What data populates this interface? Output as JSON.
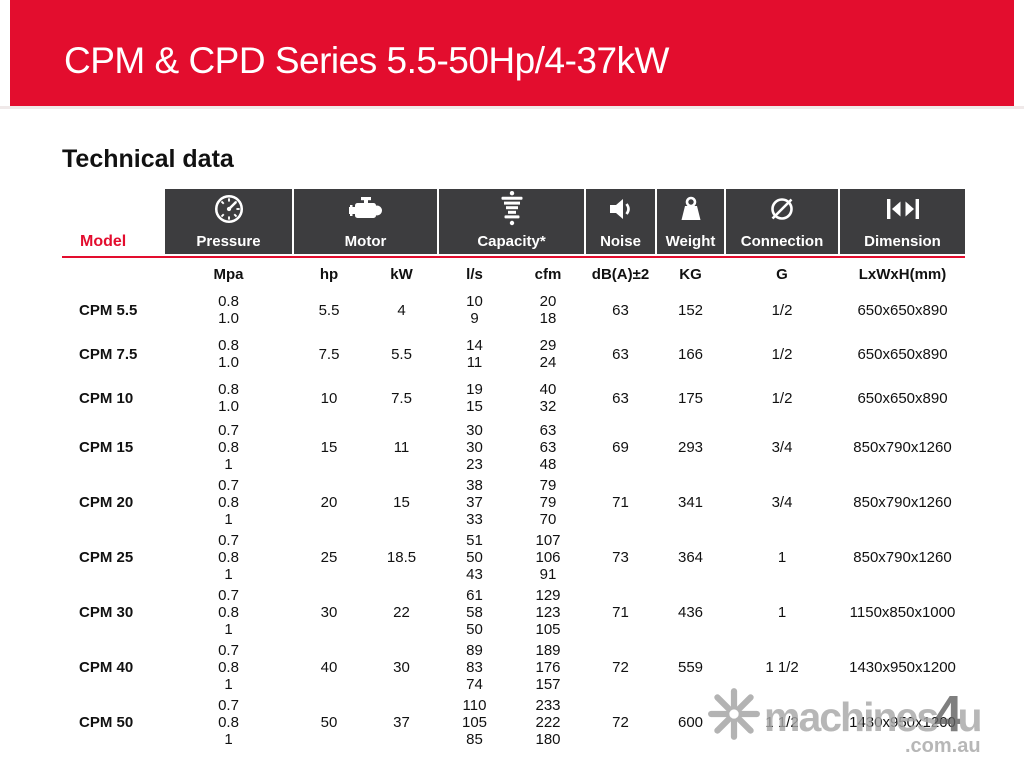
{
  "banner": {
    "title": "CPM & CPD Series 5.5-50Hp/4-37kW"
  },
  "section_title": "Technical data",
  "table": {
    "model_header": "Model",
    "groups": [
      {
        "label": "Pressure",
        "icon": "gauge-icon"
      },
      {
        "label": "Motor",
        "icon": "engine-icon"
      },
      {
        "label": "Capacity*",
        "icon": "airflow-icon"
      },
      {
        "label": "Noise",
        "icon": "speaker-icon"
      },
      {
        "label": "Weight",
        "icon": "weight-icon"
      },
      {
        "label": "Connection",
        "icon": "diameter-icon"
      },
      {
        "label": "Dimension",
        "icon": "dimension-arrows-icon"
      }
    ],
    "units": [
      "Mpa",
      "hp",
      "kW",
      "l/s",
      "cfm",
      "dB(A)±2",
      "KG",
      "G",
      "LxWxH(mm)"
    ],
    "rows": [
      {
        "model": "CPM 5.5",
        "pressure": [
          "0.8",
          "1.0"
        ],
        "hp": "5.5",
        "kw": "4",
        "ls": [
          "10",
          "9"
        ],
        "cfm": [
          "20",
          "18"
        ],
        "noise": "63",
        "weight": "152",
        "connection": "1/2",
        "dimension": "650x650x890"
      },
      {
        "model": "CPM 7.5",
        "pressure": [
          "0.8",
          "1.0"
        ],
        "hp": "7.5",
        "kw": "5.5",
        "ls": [
          "14",
          "11"
        ],
        "cfm": [
          "29",
          "24"
        ],
        "noise": "63",
        "weight": "166",
        "connection": "1/2",
        "dimension": "650x650x890"
      },
      {
        "model": "CPM 10",
        "pressure": [
          "0.8",
          "1.0"
        ],
        "hp": "10",
        "kw": "7.5",
        "ls": [
          "19",
          "15"
        ],
        "cfm": [
          "40",
          "32"
        ],
        "noise": "63",
        "weight": "175",
        "connection": "1/2",
        "dimension": "650x650x890"
      },
      {
        "model": "CPM 15",
        "pressure": [
          "0.7",
          "0.8",
          "1"
        ],
        "hp": "15",
        "kw": "11",
        "ls": [
          "30",
          "30",
          "23"
        ],
        "cfm": [
          "63",
          "63",
          "48"
        ],
        "noise": "69",
        "weight": "293",
        "connection": "3/4",
        "dimension": "850x790x1260"
      },
      {
        "model": "CPM 20",
        "pressure": [
          "0.7",
          "0.8",
          "1"
        ],
        "hp": "20",
        "kw": "15",
        "ls": [
          "38",
          "37",
          "33"
        ],
        "cfm": [
          "79",
          "79",
          "70"
        ],
        "noise": "71",
        "weight": "341",
        "connection": "3/4",
        "dimension": "850x790x1260"
      },
      {
        "model": "CPM 25",
        "pressure": [
          "0.7",
          "0.8",
          "1"
        ],
        "hp": "25",
        "kw": "18.5",
        "ls": [
          "51",
          "50",
          "43"
        ],
        "cfm": [
          "107",
          "106",
          "91"
        ],
        "noise": "73",
        "weight": "364",
        "connection": "1",
        "dimension": "850x790x1260"
      },
      {
        "model": "CPM 30",
        "pressure": [
          "0.7",
          "0.8",
          "1"
        ],
        "hp": "30",
        "kw": "22",
        "ls": [
          "61",
          "58",
          "50"
        ],
        "cfm": [
          "129",
          "123",
          "105"
        ],
        "noise": "71",
        "weight": "436",
        "connection": "1",
        "dimension": "1150x850x1000"
      },
      {
        "model": "CPM 40",
        "pressure": [
          "0.7",
          "0.8",
          "1"
        ],
        "hp": "40",
        "kw": "30",
        "ls": [
          "89",
          "83",
          "74"
        ],
        "cfm": [
          "189",
          "176",
          "157"
        ],
        "noise": "72",
        "weight": "559",
        "connection": "1 1/2",
        "dimension": "1430x950x1200"
      },
      {
        "model": "CPM 50",
        "pressure": [
          "0.7",
          "0.8",
          "1"
        ],
        "hp": "50",
        "kw": "37",
        "ls": [
          "110",
          "105",
          "85"
        ],
        "cfm": [
          "233",
          "222",
          "180"
        ],
        "noise": "72",
        "weight": "600",
        "connection": "1 1/2",
        "dimension": "1430x950x1200"
      }
    ]
  },
  "watermark": {
    "brand": "machines",
    "four": "4",
    "u": "u",
    "suffix": ".com.au",
    "logo_icon": "machines4u-asterisk-icon"
  },
  "colors": {
    "accent_red": "#e30d2e",
    "header_dark": "#3d3d3f",
    "watermark_gray": "#a8a8a8",
    "watermark_dark_gray": "#636363"
  }
}
